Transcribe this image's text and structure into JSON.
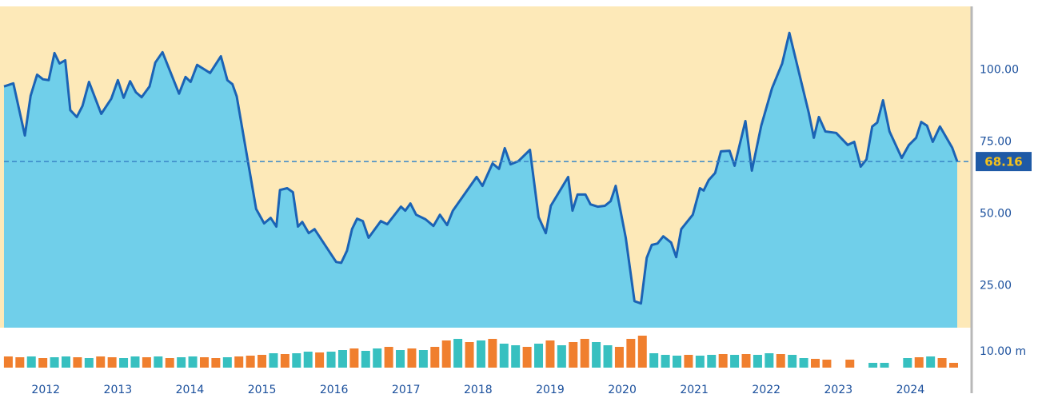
{
  "chart_data": [
    {
      "type": "area",
      "x": [
        2011.42,
        2011.55,
        2011.71,
        2011.79,
        2011.88,
        2011.96,
        2012.04,
        2012.12,
        2012.19,
        2012.27,
        2012.34,
        2012.43,
        2012.51,
        2012.6,
        2012.77,
        2012.91,
        2013.0,
        2013.08,
        2013.17,
        2013.25,
        2013.33,
        2013.44,
        2013.52,
        2013.62,
        2013.85,
        2013.94,
        2014.01,
        2014.1,
        2014.28,
        2014.43,
        2014.52,
        2014.59,
        2014.65,
        2014.92,
        2015.03,
        2015.12,
        2015.2,
        2015.25,
        2015.35,
        2015.43,
        2015.5,
        2015.56,
        2015.65,
        2015.73,
        2016.03,
        2016.1,
        2016.18,
        2016.25,
        2016.32,
        2016.4,
        2016.48,
        2016.65,
        2016.74,
        2016.93,
        2016.99,
        2017.06,
        2017.14,
        2017.27,
        2017.38,
        2017.47,
        2017.57,
        2017.65,
        2017.98,
        2018.06,
        2018.2,
        2018.29,
        2018.37,
        2018.45,
        2018.56,
        2018.72,
        2018.84,
        2018.94,
        2019.01,
        2019.25,
        2019.31,
        2019.38,
        2019.49,
        2019.56,
        2019.66,
        2019.76,
        2019.84,
        2019.91,
        2020.05,
        2020.17,
        2020.26,
        2020.34,
        2020.41,
        2020.49,
        2020.57,
        2020.68,
        2020.75,
        2020.82,
        2020.98,
        2021.08,
        2021.13,
        2021.2,
        2021.29,
        2021.37,
        2021.49,
        2021.56,
        2021.71,
        2021.8,
        2021.93,
        2022.08,
        2022.22,
        2022.32,
        2022.59,
        2022.66,
        2022.73,
        2022.82,
        2022.97,
        2023.13,
        2023.22,
        2023.31,
        2023.39,
        2023.47,
        2023.54,
        2023.62,
        2023.71,
        2023.88,
        2023.98,
        2024.08,
        2024.15,
        2024.23,
        2024.31,
        2024.41,
        2024.58,
        2024.65
      ],
      "values": [
        94.2,
        95.3,
        77.2,
        91,
        98.3,
        96.7,
        96.4,
        105.8,
        102.2,
        103.3,
        86,
        83.6,
        87.5,
        95.8,
        84.7,
        90,
        96.4,
        90.3,
        96,
        92.2,
        90.5,
        94.2,
        102.5,
        106.1,
        91.7,
        97.5,
        95.8,
        101.7,
        98.9,
        104.7,
        96.4,
        95,
        90.8,
        51.7,
        46.7,
        48.6,
        45.6,
        58.3,
        58.9,
        57.5,
        45.6,
        47.2,
        43.3,
        44.7,
        33.3,
        33,
        37.2,
        44.7,
        48.3,
        47.5,
        41.7,
        47.5,
        46.4,
        52.5,
        51.1,
        53.6,
        49.7,
        48.1,
        45.8,
        49.7,
        46.1,
        51.1,
        62.8,
        59.7,
        67.5,
        65.6,
        72.8,
        67.2,
        68.3,
        72.2,
        48.9,
        43.3,
        52.8,
        62.8,
        51.1,
        56.7,
        56.7,
        53.3,
        52.5,
        52.8,
        54.4,
        59.7,
        41.7,
        19.7,
        18.9,
        34.7,
        39.2,
        39.7,
        42.2,
        40,
        35,
        44.7,
        49.7,
        58.9,
        58.1,
        61.7,
        64.2,
        71.7,
        71.9,
        66.7,
        82.2,
        65,
        80.6,
        93.6,
        102.2,
        112.8,
        85,
        76.4,
        83.6,
        78.6,
        78.1,
        73.9,
        75,
        66.4,
        68.9,
        80.3,
        81.7,
        89.4,
        78.6,
        69.4,
        73.9,
        76.4,
        81.9,
        80.6,
        75,
        80.3,
        73,
        68.16
      ],
      "color": "#1b63b5",
      "fill": "#70cfea",
      "background": "#fde9b8",
      "xlim": [
        2011.42,
        2024.65
      ],
      "ylim": [
        10.5,
        122
      ],
      "yticks": [
        {
          "value": 25,
          "label": "25.00"
        },
        {
          "value": 50,
          "label": "50.00"
        },
        {
          "value": 75,
          "label": "75.00"
        },
        {
          "value": 100,
          "label": "100.00"
        }
      ],
      "xticks": [
        2012,
        2013,
        2014,
        2015,
        2016,
        2017,
        2018,
        2019,
        2020,
        2021,
        2022,
        2023,
        2024
      ]
    },
    {
      "type": "bar",
      "x": [
        2011.48,
        2011.64,
        2011.8,
        2011.96,
        2012.12,
        2012.28,
        2012.44,
        2012.6,
        2012.76,
        2012.92,
        2013.08,
        2013.24,
        2013.4,
        2013.56,
        2013.72,
        2013.88,
        2014.04,
        2014.2,
        2014.36,
        2014.52,
        2014.68,
        2014.84,
        2015.0,
        2015.16,
        2015.32,
        2015.48,
        2015.64,
        2015.8,
        2015.96,
        2016.12,
        2016.28,
        2016.44,
        2016.6,
        2016.76,
        2016.92,
        2017.08,
        2017.24,
        2017.4,
        2017.56,
        2017.72,
        2017.88,
        2018.04,
        2018.2,
        2018.36,
        2018.52,
        2018.68,
        2018.84,
        2019.0,
        2019.16,
        2019.32,
        2019.48,
        2019.64,
        2019.8,
        2019.96,
        2020.12,
        2020.28,
        2020.44,
        2020.6,
        2020.76,
        2020.92,
        2021.08,
        2021.24,
        2021.4,
        2021.56,
        2021.72,
        2021.88,
        2022.04,
        2022.2,
        2022.36,
        2022.52,
        2022.68,
        2022.84,
        2023.0,
        2023.16,
        2023.32,
        2023.48,
        2023.64,
        2023.8,
        2023.96,
        2024.12,
        2024.28,
        2024.44,
        2024.6
      ],
      "values": [
        7,
        6.5,
        7,
        6,
        6.5,
        7,
        6.5,
        6,
        7,
        6.5,
        6,
        7,
        6.5,
        7,
        6,
        6.5,
        7,
        6.5,
        6,
        6.5,
        7,
        7.5,
        8,
        9,
        8.5,
        9,
        10,
        9.5,
        10,
        11,
        12,
        10.5,
        12,
        13,
        11,
        12,
        11,
        13,
        17,
        18,
        16,
        17,
        18,
        15,
        14,
        13,
        15,
        17,
        14,
        16,
        18,
        16,
        14,
        13,
        18,
        20,
        9,
        8,
        7.5,
        8,
        7.5,
        8,
        8.5,
        8,
        8.5,
        8,
        9,
        8.5,
        8,
        6,
        5.5,
        5,
        null,
        5,
        null,
        3,
        3,
        null,
        6,
        6.5,
        7,
        6,
        3
      ],
      "colors": [
        "#f07f2e",
        "#f07f2e",
        "#37c0c0",
        "#f07f2e",
        "#37c0c0",
        "#37c0c0",
        "#f07f2e",
        "#37c0c0",
        "#f07f2e",
        "#f07f2e",
        "#37c0c0",
        "#37c0c0",
        "#f07f2e",
        "#37c0c0",
        "#f07f2e",
        "#37c0c0",
        "#37c0c0",
        "#f07f2e",
        "#f07f2e",
        "#37c0c0",
        "#f07f2e",
        "#f07f2e",
        "#f07f2e",
        "#37c0c0",
        "#f07f2e",
        "#37c0c0",
        "#37c0c0",
        "#f07f2e",
        "#37c0c0",
        "#37c0c0",
        "#f07f2e",
        "#37c0c0",
        "#37c0c0",
        "#f07f2e",
        "#37c0c0",
        "#f07f2e",
        "#37c0c0",
        "#f07f2e",
        "#f07f2e",
        "#37c0c0",
        "#f07f2e",
        "#37c0c0",
        "#f07f2e",
        "#37c0c0",
        "#37c0c0",
        "#f07f2e",
        "#37c0c0",
        "#f07f2e",
        "#37c0c0",
        "#f07f2e",
        "#f07f2e",
        "#37c0c0",
        "#37c0c0",
        "#f07f2e",
        "#f07f2e",
        "#f07f2e",
        "#37c0c0",
        "#37c0c0",
        "#37c0c0",
        "#f07f2e",
        "#37c0c0",
        "#37c0c0",
        "#f07f2e",
        "#37c0c0",
        "#f07f2e",
        "#37c0c0",
        "#37c0c0",
        "#f07f2e",
        "#37c0c0",
        "#37c0c0",
        "#f07f2e",
        "#f07f2e",
        "#f07f2e",
        "#f07f2e",
        "#f07f2e",
        "#37c0c0",
        "#37c0c0",
        "#37c0c0",
        "#37c0c0",
        "#f07f2e",
        "#37c0c0",
        "#f07f2e",
        "#f07f2e"
      ],
      "xlim": [
        2011.42,
        2024.65
      ],
      "ylim": [
        0,
        20
      ],
      "yticks": [
        {
          "value": 10,
          "label": "10.00 m"
        }
      ]
    }
  ]
}
